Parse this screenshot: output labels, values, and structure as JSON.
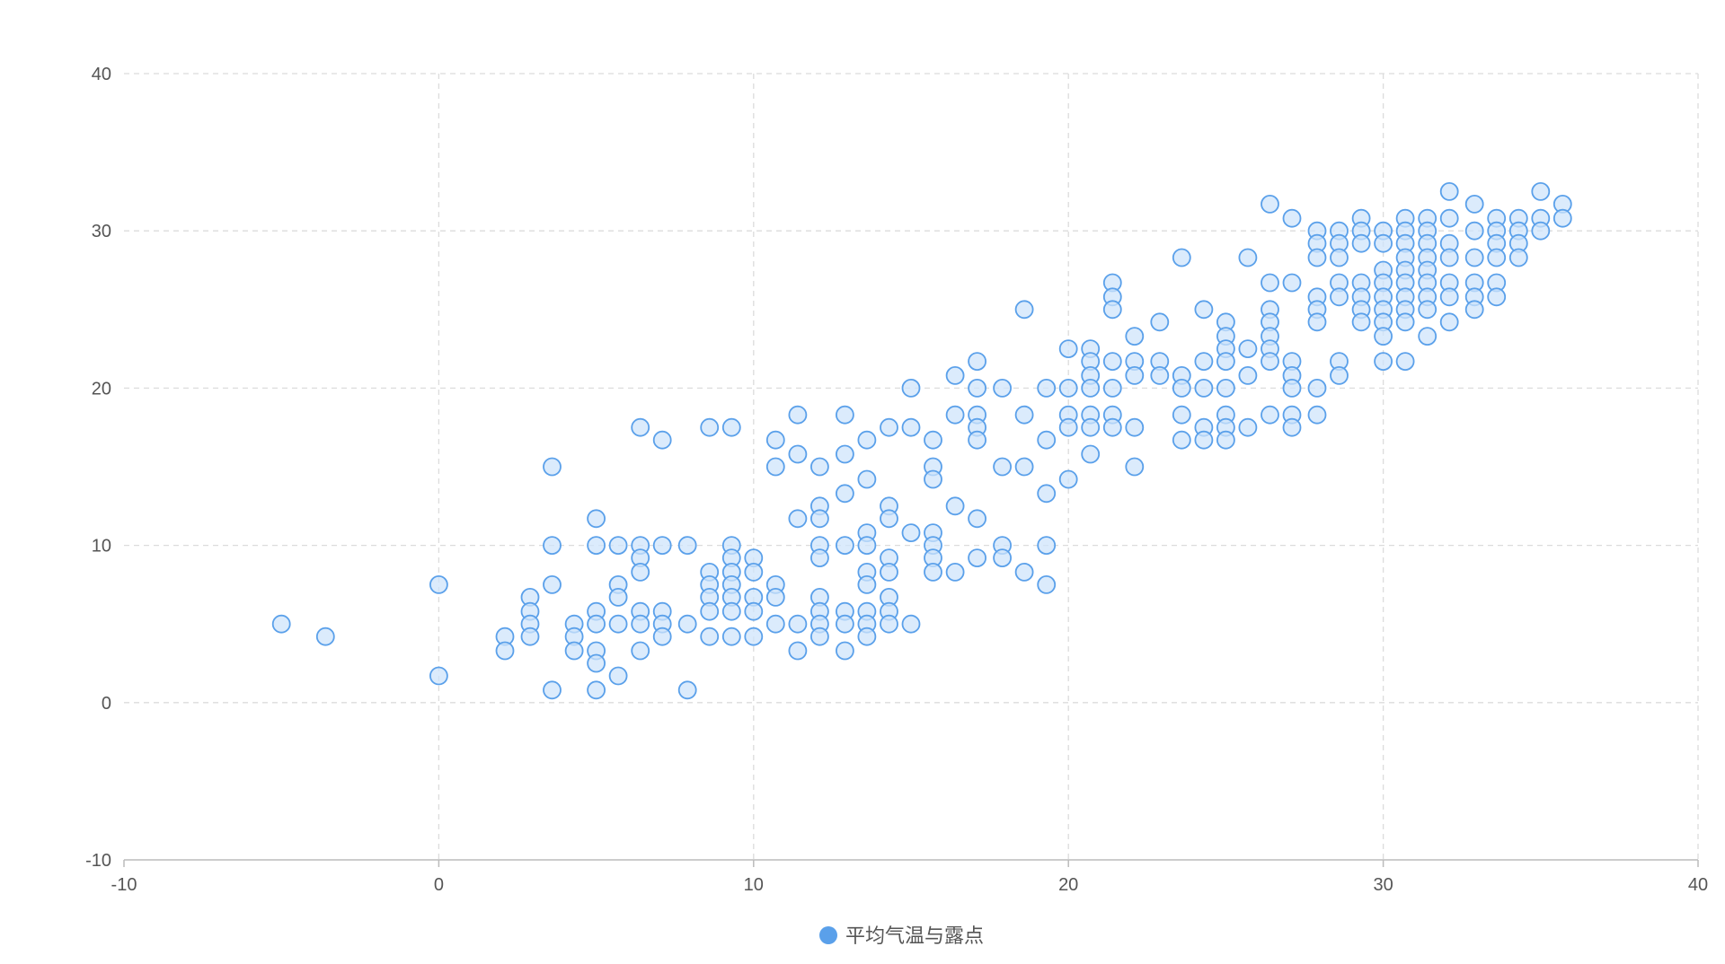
{
  "chart_data": {
    "type": "scatter",
    "title": "",
    "xlabel": "",
    "ylabel": "",
    "xlim": [
      -10,
      40
    ],
    "ylim": [
      -10,
      40
    ],
    "x_ticks": [
      -10,
      0,
      10,
      20,
      30,
      40
    ],
    "y_ticks": [
      -10,
      0,
      10,
      20,
      30,
      40
    ],
    "x_tick_labels": [
      "-10",
      "0",
      "10",
      "20",
      "30",
      "40"
    ],
    "y_tick_labels": [
      "-10",
      "0",
      "10",
      "20",
      "30",
      "40"
    ],
    "grid": true,
    "legend_position": "bottom-center",
    "colors": {
      "fill": "#cfe4fb",
      "stroke": "#5aa0ea",
      "legend_marker": "#5aa0ea"
    },
    "series": [
      {
        "name": "平均气温与露点",
        "points": [
          [
            -5.0,
            5.0
          ],
          [
            -3.6,
            4.2
          ],
          [
            0.0,
            7.5
          ],
          [
            0.0,
            1.7
          ],
          [
            2.1,
            4.2
          ],
          [
            2.1,
            3.3
          ],
          [
            2.9,
            6.7
          ],
          [
            2.9,
            5.8
          ],
          [
            2.9,
            5.0
          ],
          [
            2.9,
            4.2
          ],
          [
            3.6,
            15.0
          ],
          [
            3.6,
            10.0
          ],
          [
            3.6,
            7.5
          ],
          [
            3.6,
            0.8
          ],
          [
            4.3,
            5.0
          ],
          [
            4.3,
            4.2
          ],
          [
            4.3,
            3.3
          ],
          [
            5.0,
            11.7
          ],
          [
            5.0,
            10.0
          ],
          [
            5.0,
            5.8
          ],
          [
            5.0,
            5.0
          ],
          [
            5.0,
            3.3
          ],
          [
            5.0,
            2.5
          ],
          [
            5.0,
            0.8
          ],
          [
            5.7,
            10.0
          ],
          [
            5.7,
            7.5
          ],
          [
            5.7,
            6.7
          ],
          [
            5.7,
            5.0
          ],
          [
            5.7,
            1.7
          ],
          [
            6.4,
            17.5
          ],
          [
            6.4,
            10.0
          ],
          [
            6.4,
            9.2
          ],
          [
            6.4,
            8.3
          ],
          [
            6.4,
            5.8
          ],
          [
            6.4,
            5.0
          ],
          [
            6.4,
            3.3
          ],
          [
            7.1,
            16.7
          ],
          [
            7.1,
            10.0
          ],
          [
            7.1,
            5.8
          ],
          [
            7.1,
            5.0
          ],
          [
            7.1,
            4.2
          ],
          [
            7.9,
            10.0
          ],
          [
            7.9,
            5.0
          ],
          [
            7.9,
            0.8
          ],
          [
            8.6,
            17.5
          ],
          [
            8.6,
            8.3
          ],
          [
            8.6,
            7.5
          ],
          [
            8.6,
            6.7
          ],
          [
            8.6,
            5.8
          ],
          [
            8.6,
            4.2
          ],
          [
            9.3,
            17.5
          ],
          [
            9.3,
            10.0
          ],
          [
            9.3,
            9.2
          ],
          [
            9.3,
            8.3
          ],
          [
            9.3,
            7.5
          ],
          [
            9.3,
            6.7
          ],
          [
            9.3,
            5.8
          ],
          [
            9.3,
            4.2
          ],
          [
            10.0,
            9.2
          ],
          [
            10.0,
            8.3
          ],
          [
            10.0,
            6.7
          ],
          [
            10.0,
            5.8
          ],
          [
            10.0,
            4.2
          ],
          [
            10.7,
            16.7
          ],
          [
            10.7,
            15.0
          ],
          [
            10.7,
            7.5
          ],
          [
            10.7,
            6.7
          ],
          [
            10.7,
            5.0
          ],
          [
            11.4,
            18.3
          ],
          [
            11.4,
            15.8
          ],
          [
            11.4,
            11.7
          ],
          [
            11.4,
            5.0
          ],
          [
            11.4,
            3.3
          ],
          [
            12.1,
            15.0
          ],
          [
            12.1,
            12.5
          ],
          [
            12.1,
            11.7
          ],
          [
            12.1,
            10.0
          ],
          [
            12.1,
            9.2
          ],
          [
            12.1,
            6.7
          ],
          [
            12.1,
            5.8
          ],
          [
            12.1,
            5.0
          ],
          [
            12.1,
            4.2
          ],
          [
            12.9,
            18.3
          ],
          [
            12.9,
            15.8
          ],
          [
            12.9,
            13.3
          ],
          [
            12.9,
            10.0
          ],
          [
            12.9,
            5.8
          ],
          [
            12.9,
            5.0
          ],
          [
            12.9,
            3.3
          ],
          [
            13.6,
            16.7
          ],
          [
            13.6,
            14.2
          ],
          [
            13.6,
            10.8
          ],
          [
            13.6,
            10.0
          ],
          [
            13.6,
            8.3
          ],
          [
            13.6,
            7.5
          ],
          [
            13.6,
            5.8
          ],
          [
            13.6,
            5.0
          ],
          [
            13.6,
            4.2
          ],
          [
            14.3,
            17.5
          ],
          [
            14.3,
            12.5
          ],
          [
            14.3,
            11.7
          ],
          [
            14.3,
            9.2
          ],
          [
            14.3,
            8.3
          ],
          [
            14.3,
            6.7
          ],
          [
            14.3,
            5.8
          ],
          [
            14.3,
            5.0
          ],
          [
            15.0,
            20.0
          ],
          [
            15.0,
            17.5
          ],
          [
            15.0,
            10.8
          ],
          [
            15.0,
            5.0
          ],
          [
            15.7,
            16.7
          ],
          [
            15.7,
            15.0
          ],
          [
            15.7,
            14.2
          ],
          [
            15.7,
            10.8
          ],
          [
            15.7,
            10.0
          ],
          [
            15.7,
            9.2
          ],
          [
            15.7,
            8.3
          ],
          [
            16.4,
            20.8
          ],
          [
            16.4,
            18.3
          ],
          [
            16.4,
            12.5
          ],
          [
            16.4,
            8.3
          ],
          [
            17.1,
            21.7
          ],
          [
            17.1,
            20.0
          ],
          [
            17.1,
            18.3
          ],
          [
            17.1,
            17.5
          ],
          [
            17.1,
            16.7
          ],
          [
            17.1,
            11.7
          ],
          [
            17.1,
            9.2
          ],
          [
            17.9,
            20.0
          ],
          [
            17.9,
            15.0
          ],
          [
            17.9,
            10.0
          ],
          [
            17.9,
            9.2
          ],
          [
            18.6,
            25.0
          ],
          [
            18.6,
            18.3
          ],
          [
            18.6,
            15.0
          ],
          [
            18.6,
            8.3
          ],
          [
            19.3,
            20.0
          ],
          [
            19.3,
            16.7
          ],
          [
            19.3,
            13.3
          ],
          [
            19.3,
            10.0
          ],
          [
            19.3,
            7.5
          ],
          [
            20.0,
            22.5
          ],
          [
            20.0,
            20.0
          ],
          [
            20.0,
            18.3
          ],
          [
            20.0,
            17.5
          ],
          [
            20.0,
            14.2
          ],
          [
            20.7,
            22.5
          ],
          [
            20.7,
            21.7
          ],
          [
            20.7,
            20.8
          ],
          [
            20.7,
            20.0
          ],
          [
            20.7,
            18.3
          ],
          [
            20.7,
            17.5
          ],
          [
            20.7,
            15.8
          ],
          [
            21.4,
            26.7
          ],
          [
            21.4,
            25.8
          ],
          [
            21.4,
            25.0
          ],
          [
            21.4,
            21.7
          ],
          [
            21.4,
            20.0
          ],
          [
            21.4,
            18.3
          ],
          [
            21.4,
            17.5
          ],
          [
            22.1,
            23.3
          ],
          [
            22.1,
            21.7
          ],
          [
            22.1,
            20.8
          ],
          [
            22.1,
            17.5
          ],
          [
            22.1,
            15.0
          ],
          [
            22.9,
            24.2
          ],
          [
            22.9,
            21.7
          ],
          [
            22.9,
            20.8
          ],
          [
            23.6,
            28.3
          ],
          [
            23.6,
            20.8
          ],
          [
            23.6,
            20.0
          ],
          [
            23.6,
            18.3
          ],
          [
            23.6,
            16.7
          ],
          [
            24.3,
            25.0
          ],
          [
            24.3,
            21.7
          ],
          [
            24.3,
            20.0
          ],
          [
            24.3,
            17.5
          ],
          [
            24.3,
            16.7
          ],
          [
            25.0,
            24.2
          ],
          [
            25.0,
            23.3
          ],
          [
            25.0,
            22.5
          ],
          [
            25.0,
            21.7
          ],
          [
            25.0,
            20.0
          ],
          [
            25.0,
            18.3
          ],
          [
            25.0,
            17.5
          ],
          [
            25.0,
            16.7
          ],
          [
            25.7,
            28.3
          ],
          [
            25.7,
            22.5
          ],
          [
            25.7,
            20.8
          ],
          [
            25.7,
            17.5
          ],
          [
            26.4,
            31.7
          ],
          [
            26.4,
            26.7
          ],
          [
            26.4,
            25.0
          ],
          [
            26.4,
            24.2
          ],
          [
            26.4,
            23.3
          ],
          [
            26.4,
            22.5
          ],
          [
            26.4,
            21.7
          ],
          [
            26.4,
            18.3
          ],
          [
            27.1,
            30.8
          ],
          [
            27.1,
            26.7
          ],
          [
            27.1,
            21.7
          ],
          [
            27.1,
            20.8
          ],
          [
            27.1,
            20.0
          ],
          [
            27.1,
            18.3
          ],
          [
            27.1,
            17.5
          ],
          [
            27.9,
            30.0
          ],
          [
            27.9,
            29.2
          ],
          [
            27.9,
            28.3
          ],
          [
            27.9,
            25.8
          ],
          [
            27.9,
            25.0
          ],
          [
            27.9,
            24.2
          ],
          [
            27.9,
            20.0
          ],
          [
            27.9,
            18.3
          ],
          [
            28.6,
            30.0
          ],
          [
            28.6,
            29.2
          ],
          [
            28.6,
            28.3
          ],
          [
            28.6,
            26.7
          ],
          [
            28.6,
            25.8
          ],
          [
            28.6,
            21.7
          ],
          [
            28.6,
            20.8
          ],
          [
            29.3,
            30.8
          ],
          [
            29.3,
            30.0
          ],
          [
            29.3,
            29.2
          ],
          [
            29.3,
            26.7
          ],
          [
            29.3,
            25.8
          ],
          [
            29.3,
            25.0
          ],
          [
            29.3,
            24.2
          ],
          [
            30.0,
            30.0
          ],
          [
            30.0,
            29.2
          ],
          [
            30.0,
            27.5
          ],
          [
            30.0,
            26.7
          ],
          [
            30.0,
            25.8
          ],
          [
            30.0,
            25.0
          ],
          [
            30.0,
            24.2
          ],
          [
            30.0,
            23.3
          ],
          [
            30.0,
            21.7
          ],
          [
            30.7,
            30.8
          ],
          [
            30.7,
            30.0
          ],
          [
            30.7,
            29.2
          ],
          [
            30.7,
            28.3
          ],
          [
            30.7,
            27.5
          ],
          [
            30.7,
            26.7
          ],
          [
            30.7,
            25.8
          ],
          [
            30.7,
            25.0
          ],
          [
            30.7,
            24.2
          ],
          [
            30.7,
            21.7
          ],
          [
            31.4,
            30.8
          ],
          [
            31.4,
            30.0
          ],
          [
            31.4,
            29.2
          ],
          [
            31.4,
            28.3
          ],
          [
            31.4,
            27.5
          ],
          [
            31.4,
            26.7
          ],
          [
            31.4,
            25.8
          ],
          [
            31.4,
            25.0
          ],
          [
            31.4,
            23.3
          ],
          [
            32.1,
            32.5
          ],
          [
            32.1,
            30.8
          ],
          [
            32.1,
            29.2
          ],
          [
            32.1,
            28.3
          ],
          [
            32.1,
            26.7
          ],
          [
            32.1,
            25.8
          ],
          [
            32.1,
            24.2
          ],
          [
            32.9,
            31.7
          ],
          [
            32.9,
            30.0
          ],
          [
            32.9,
            28.3
          ],
          [
            32.9,
            26.7
          ],
          [
            32.9,
            25.8
          ],
          [
            32.9,
            25.0
          ],
          [
            33.6,
            30.8
          ],
          [
            33.6,
            30.0
          ],
          [
            33.6,
            29.2
          ],
          [
            33.6,
            28.3
          ],
          [
            33.6,
            26.7
          ],
          [
            33.6,
            25.8
          ],
          [
            34.3,
            30.8
          ],
          [
            34.3,
            30.0
          ],
          [
            34.3,
            29.2
          ],
          [
            34.3,
            28.3
          ],
          [
            35.0,
            32.5
          ],
          [
            35.0,
            30.8
          ],
          [
            35.0,
            30.0
          ],
          [
            35.7,
            31.7
          ],
          [
            35.7,
            30.8
          ]
        ]
      }
    ]
  }
}
